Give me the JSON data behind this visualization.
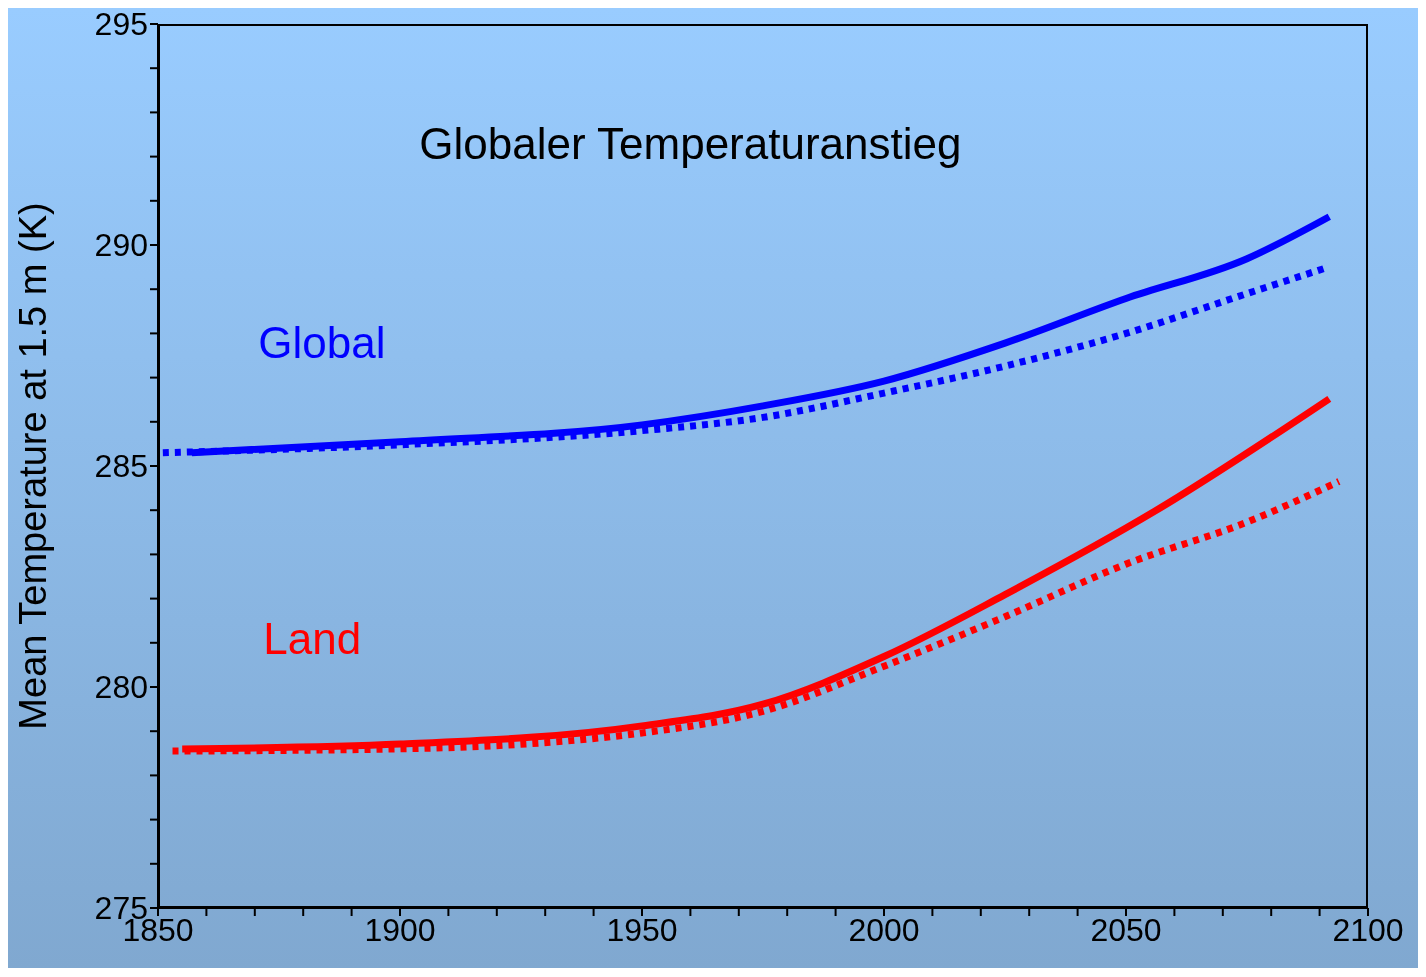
{
  "chart_data": {
    "type": "line",
    "title": "Globaler Temperaturanstieg",
    "ylabel": "Mean Temperature at 1.5 m (K)",
    "xlim": [
      1850,
      2100
    ],
    "xticks": [
      1850,
      {
        "value": 1860,
        "label": null
      },
      {
        "value": 1870,
        "label": null
      },
      {
        "value": 1880,
        "label": null
      },
      {
        "value": 1890,
        "label": null
      },
      1900,
      {
        "value": 1910,
        "label": null
      },
      {
        "value": 1920,
        "label": null
      },
      {
        "value": 1930,
        "label": null
      },
      {
        "value": 1940,
        "label": null
      },
      1950,
      {
        "value": 1960,
        "label": null
      },
      {
        "value": 1970,
        "label": null
      },
      {
        "value": 1980,
        "label": null
      },
      {
        "value": 1990,
        "label": null
      },
      2000,
      {
        "value": 2010,
        "label": null
      },
      {
        "value": 2020,
        "label": null
      },
      {
        "value": 2030,
        "label": null
      },
      {
        "value": 2040,
        "label": null
      },
      2050,
      {
        "value": 2060,
        "label": null
      },
      {
        "value": 2070,
        "label": null
      },
      {
        "value": 2080,
        "label": null
      },
      {
        "value": 2090,
        "label": null
      },
      2100
    ],
    "ylim": [
      275,
      295
    ],
    "yticks": [
      275,
      {
        "value": 276,
        "label": null
      },
      {
        "value": 277,
        "label": null
      },
      {
        "value": 278,
        "label": null
      },
      {
        "value": 279,
        "label": null
      },
      280,
      {
        "value": 281,
        "label": null
      },
      {
        "value": 282,
        "label": null
      },
      {
        "value": 283,
        "label": null
      },
      {
        "value": 284,
        "label": null
      },
      285,
      {
        "value": 286,
        "label": null
      },
      {
        "value": 287,
        "label": null
      },
      {
        "value": 288,
        "label": null
      },
      {
        "value": 289,
        "label": null
      },
      290,
      {
        "value": 291,
        "label": null
      },
      {
        "value": 292,
        "label": null
      },
      {
        "value": 293,
        "label": null
      },
      {
        "value": 294,
        "label": null
      },
      295
    ],
    "grid": false,
    "legend": false,
    "marker": "none",
    "series": [
      {
        "name": "Global",
        "color": "#0000ff",
        "line_style": "solid",
        "x": [
          1857,
          1900,
          1950,
          1975,
          2000,
          2025,
          2050,
          2075,
          2092
        ],
        "values": [
          285.3,
          285.55,
          285.93,
          286.36,
          286.92,
          287.78,
          288.79,
          289.69,
          290.64
        ]
      },
      {
        "color": "#0000ff",
        "line_style": "dotted",
        "x": [
          1851,
          1900,
          1950,
          1975,
          2000,
          2025,
          2050,
          2075,
          2091
        ],
        "values": [
          285.3,
          285.48,
          285.8,
          286.1,
          286.65,
          287.26,
          288.0,
          288.9,
          289.47
        ]
      },
      {
        "name": "Land",
        "color": "#ff0000",
        "line_style": "solid",
        "x": [
          1855,
          1900,
          1950,
          1975,
          2000,
          2025,
          2056,
          2092
        ],
        "values": [
          278.6,
          278.71,
          279.12,
          279.61,
          280.69,
          282.09,
          283.98,
          286.52
        ]
      },
      {
        "color": "#ff0000",
        "line_style": "dotted",
        "x": [
          1853,
          1900,
          1950,
          1975,
          2000,
          2025,
          2050,
          2075,
          2094
        ],
        "values": [
          278.55,
          278.6,
          278.96,
          279.45,
          280.47,
          281.59,
          282.78,
          283.73,
          284.65
        ]
      }
    ]
  }
}
